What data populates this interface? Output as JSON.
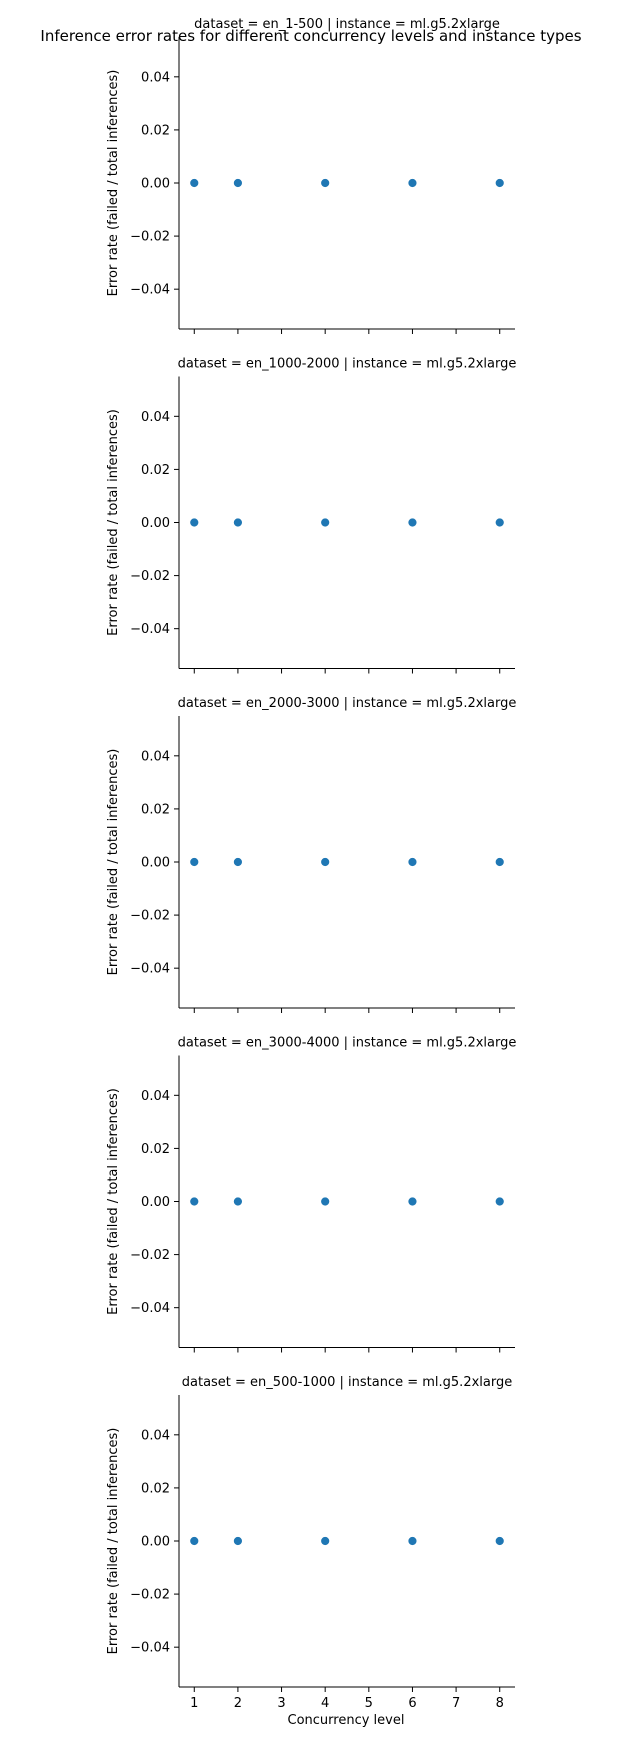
{
  "chart_data": {
    "type": "scatter",
    "title": "Inference error rates for different concurrency levels and instance types",
    "xlabel": "Concurrency level",
    "ylabel": "Error rate (failed / total inferences)",
    "xlim": [
      0.65,
      8.35
    ],
    "ylim": [
      -0.055,
      0.055
    ],
    "xticks": [
      1,
      2,
      3,
      4,
      5,
      6,
      7,
      8
    ],
    "yticks": [
      -0.04,
      -0.02,
      0.0,
      0.02,
      0.04
    ],
    "ytick_labels": [
      "−0.04",
      "−0.02",
      "0.00",
      "0.02",
      "0.04"
    ],
    "grid": false,
    "marker_color": "#1f77b4",
    "panels": [
      {
        "title": "dataset = en_1-500 | instance = ml.g5.2xlarge",
        "points": [
          {
            "x": 1,
            "y": 0.0
          },
          {
            "x": 2,
            "y": 0.0
          },
          {
            "x": 4,
            "y": 0.0
          },
          {
            "x": 6,
            "y": 0.0
          },
          {
            "x": 8,
            "y": 0.0
          }
        ]
      },
      {
        "title": "dataset = en_1000-2000 | instance = ml.g5.2xlarge",
        "points": [
          {
            "x": 1,
            "y": 0.0
          },
          {
            "x": 2,
            "y": 0.0
          },
          {
            "x": 4,
            "y": 0.0
          },
          {
            "x": 6,
            "y": 0.0
          },
          {
            "x": 8,
            "y": 0.0
          }
        ]
      },
      {
        "title": "dataset = en_2000-3000 | instance = ml.g5.2xlarge",
        "points": [
          {
            "x": 1,
            "y": 0.0
          },
          {
            "x": 2,
            "y": 0.0
          },
          {
            "x": 4,
            "y": 0.0
          },
          {
            "x": 6,
            "y": 0.0
          },
          {
            "x": 8,
            "y": 0.0
          }
        ]
      },
      {
        "title": "dataset = en_3000-4000 | instance = ml.g5.2xlarge",
        "points": [
          {
            "x": 1,
            "y": 0.0
          },
          {
            "x": 2,
            "y": 0.0
          },
          {
            "x": 4,
            "y": 0.0
          },
          {
            "x": 6,
            "y": 0.0
          },
          {
            "x": 8,
            "y": 0.0
          }
        ]
      },
      {
        "title": "dataset = en_500-1000 | instance = ml.g5.2xlarge",
        "points": [
          {
            "x": 1,
            "y": 0.0
          },
          {
            "x": 2,
            "y": 0.0
          },
          {
            "x": 4,
            "y": 0.0
          },
          {
            "x": 6,
            "y": 0.0
          },
          {
            "x": 8,
            "y": 0.0
          }
        ]
      }
    ]
  }
}
